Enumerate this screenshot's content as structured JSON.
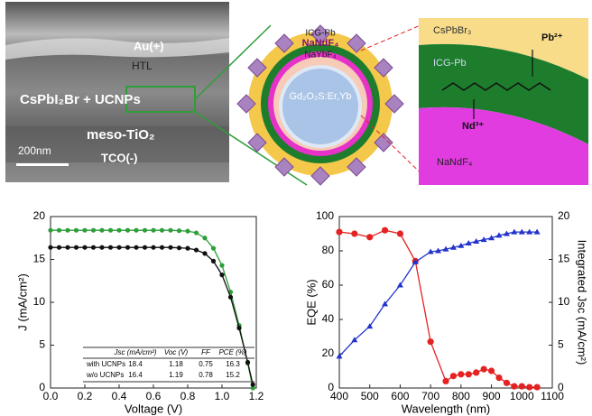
{
  "figure": {
    "sem": {
      "au": "Au(+)",
      "htl": "HTL",
      "layer": "CsPbI₂Br + UCNPs",
      "tio2": "meso-TiO₂",
      "tco": "TCO(-)",
      "scale": "200nm"
    },
    "particle": {
      "icg": "ICG-Pb",
      "nd": "NaNdF₄",
      "yb": "NaYbF₄",
      "core": "Gd₂O₂S:Er,Yb"
    },
    "zoom": {
      "cspb": "CsPbBr₃",
      "pb": "Pb²⁺",
      "icg": "ICG-Pb",
      "nd3": "Nd³⁺",
      "nd": "NaNdF₄"
    }
  },
  "chart_data": [
    {
      "type": "line",
      "xlabel": "Voltage (V)",
      "ylabel": "J (mA/cm²)",
      "x": [
        0,
        0.05,
        0.1,
        0.15,
        0.2,
        0.25,
        0.3,
        0.35,
        0.4,
        0.45,
        0.5,
        0.55,
        0.6,
        0.65,
        0.7,
        0.75,
        0.8,
        0.85,
        0.9,
        0.95,
        1.0,
        1.05,
        1.1,
        1.15,
        1.18
      ],
      "series": [
        {
          "color": "#2e9e3a",
          "values": [
            18.4,
            18.4,
            18.4,
            18.4,
            18.4,
            18.4,
            18.4,
            18.4,
            18.4,
            18.4,
            18.4,
            18.4,
            18.4,
            18.4,
            18.4,
            18.35,
            18.3,
            18.1,
            17.5,
            16.3,
            14.3,
            11.2,
            7.3,
            2.9,
            0
          ]
        },
        {
          "color": "#111111",
          "values": [
            16.4,
            16.4,
            16.4,
            16.4,
            16.4,
            16.4,
            16.4,
            16.4,
            16.4,
            16.4,
            16.4,
            16.4,
            16.4,
            16.4,
            16.4,
            16.35,
            16.3,
            16.1,
            15.7,
            14.8,
            13.2,
            10.6,
            7.0,
            3.0,
            0.4
          ]
        }
      ],
      "xlim": [
        0,
        1.2
      ],
      "xticks": [
        {
          "value": 0,
          "label": "0.0"
        },
        0.2,
        0.4,
        0.6,
        0.8,
        {
          "value": 1,
          "label": "1.0"
        },
        1.2
      ],
      "ylim": [
        0,
        20
      ],
      "yticks": [
        0,
        5,
        10,
        15,
        20
      ],
      "table": {
        "header": [
          "Jsc (mA/cm²)",
          "Voc (V)",
          "FF",
          "PCE (%)"
        ],
        "rows": [
          [
            "with UCNPs",
            18.4,
            1.18,
            0.75,
            16.3
          ],
          [
            "w/o UCNPs",
            16.4,
            1.19,
            0.78,
            15.2
          ]
        ]
      }
    },
    {
      "type": "line",
      "xlabel": "Wavelength (nm)",
      "ylabel": "EQE (%)",
      "y2label": "Integrated Jsc (mA/cm²)",
      "series": [
        {
          "color": "#e52222",
          "marker": "circle",
          "x": [
            400,
            450,
            500,
            550,
            600,
            650,
            700,
            750,
            775,
            800,
            825,
            850,
            875,
            900,
            925,
            950,
            975,
            1000,
            1025,
            1050
          ],
          "values": [
            91,
            90,
            88,
            92,
            90,
            74,
            27,
            4,
            7,
            8,
            8,
            9,
            11,
            10,
            6,
            3,
            1,
            1,
            0.5,
            0.5
          ]
        },
        {
          "color": "#2233cc",
          "marker": "triangle",
          "axis": "y2",
          "x": [
            400,
            450,
            500,
            550,
            600,
            650,
            700,
            725,
            750,
            775,
            800,
            825,
            850,
            875,
            900,
            925,
            950,
            975,
            1000,
            1025,
            1050
          ],
          "values": [
            3.7,
            5.6,
            7.2,
            9.8,
            12,
            14.7,
            15.9,
            16.0,
            16.2,
            16.4,
            16.6,
            16.9,
            17.1,
            17.3,
            17.5,
            17.8,
            18.0,
            18.2,
            18.2,
            18.2,
            18.2
          ]
        }
      ],
      "xlim": [
        400,
        1100
      ],
      "xticks": [
        400,
        500,
        600,
        700,
        800,
        900,
        1000,
        1100
      ],
      "ylim": [
        0,
        100
      ],
      "yticks": [
        0,
        20,
        40,
        60,
        80,
        100
      ],
      "y2lim": [
        0,
        20
      ],
      "y2ticks": [
        0,
        5,
        10,
        15,
        20
      ]
    }
  ]
}
